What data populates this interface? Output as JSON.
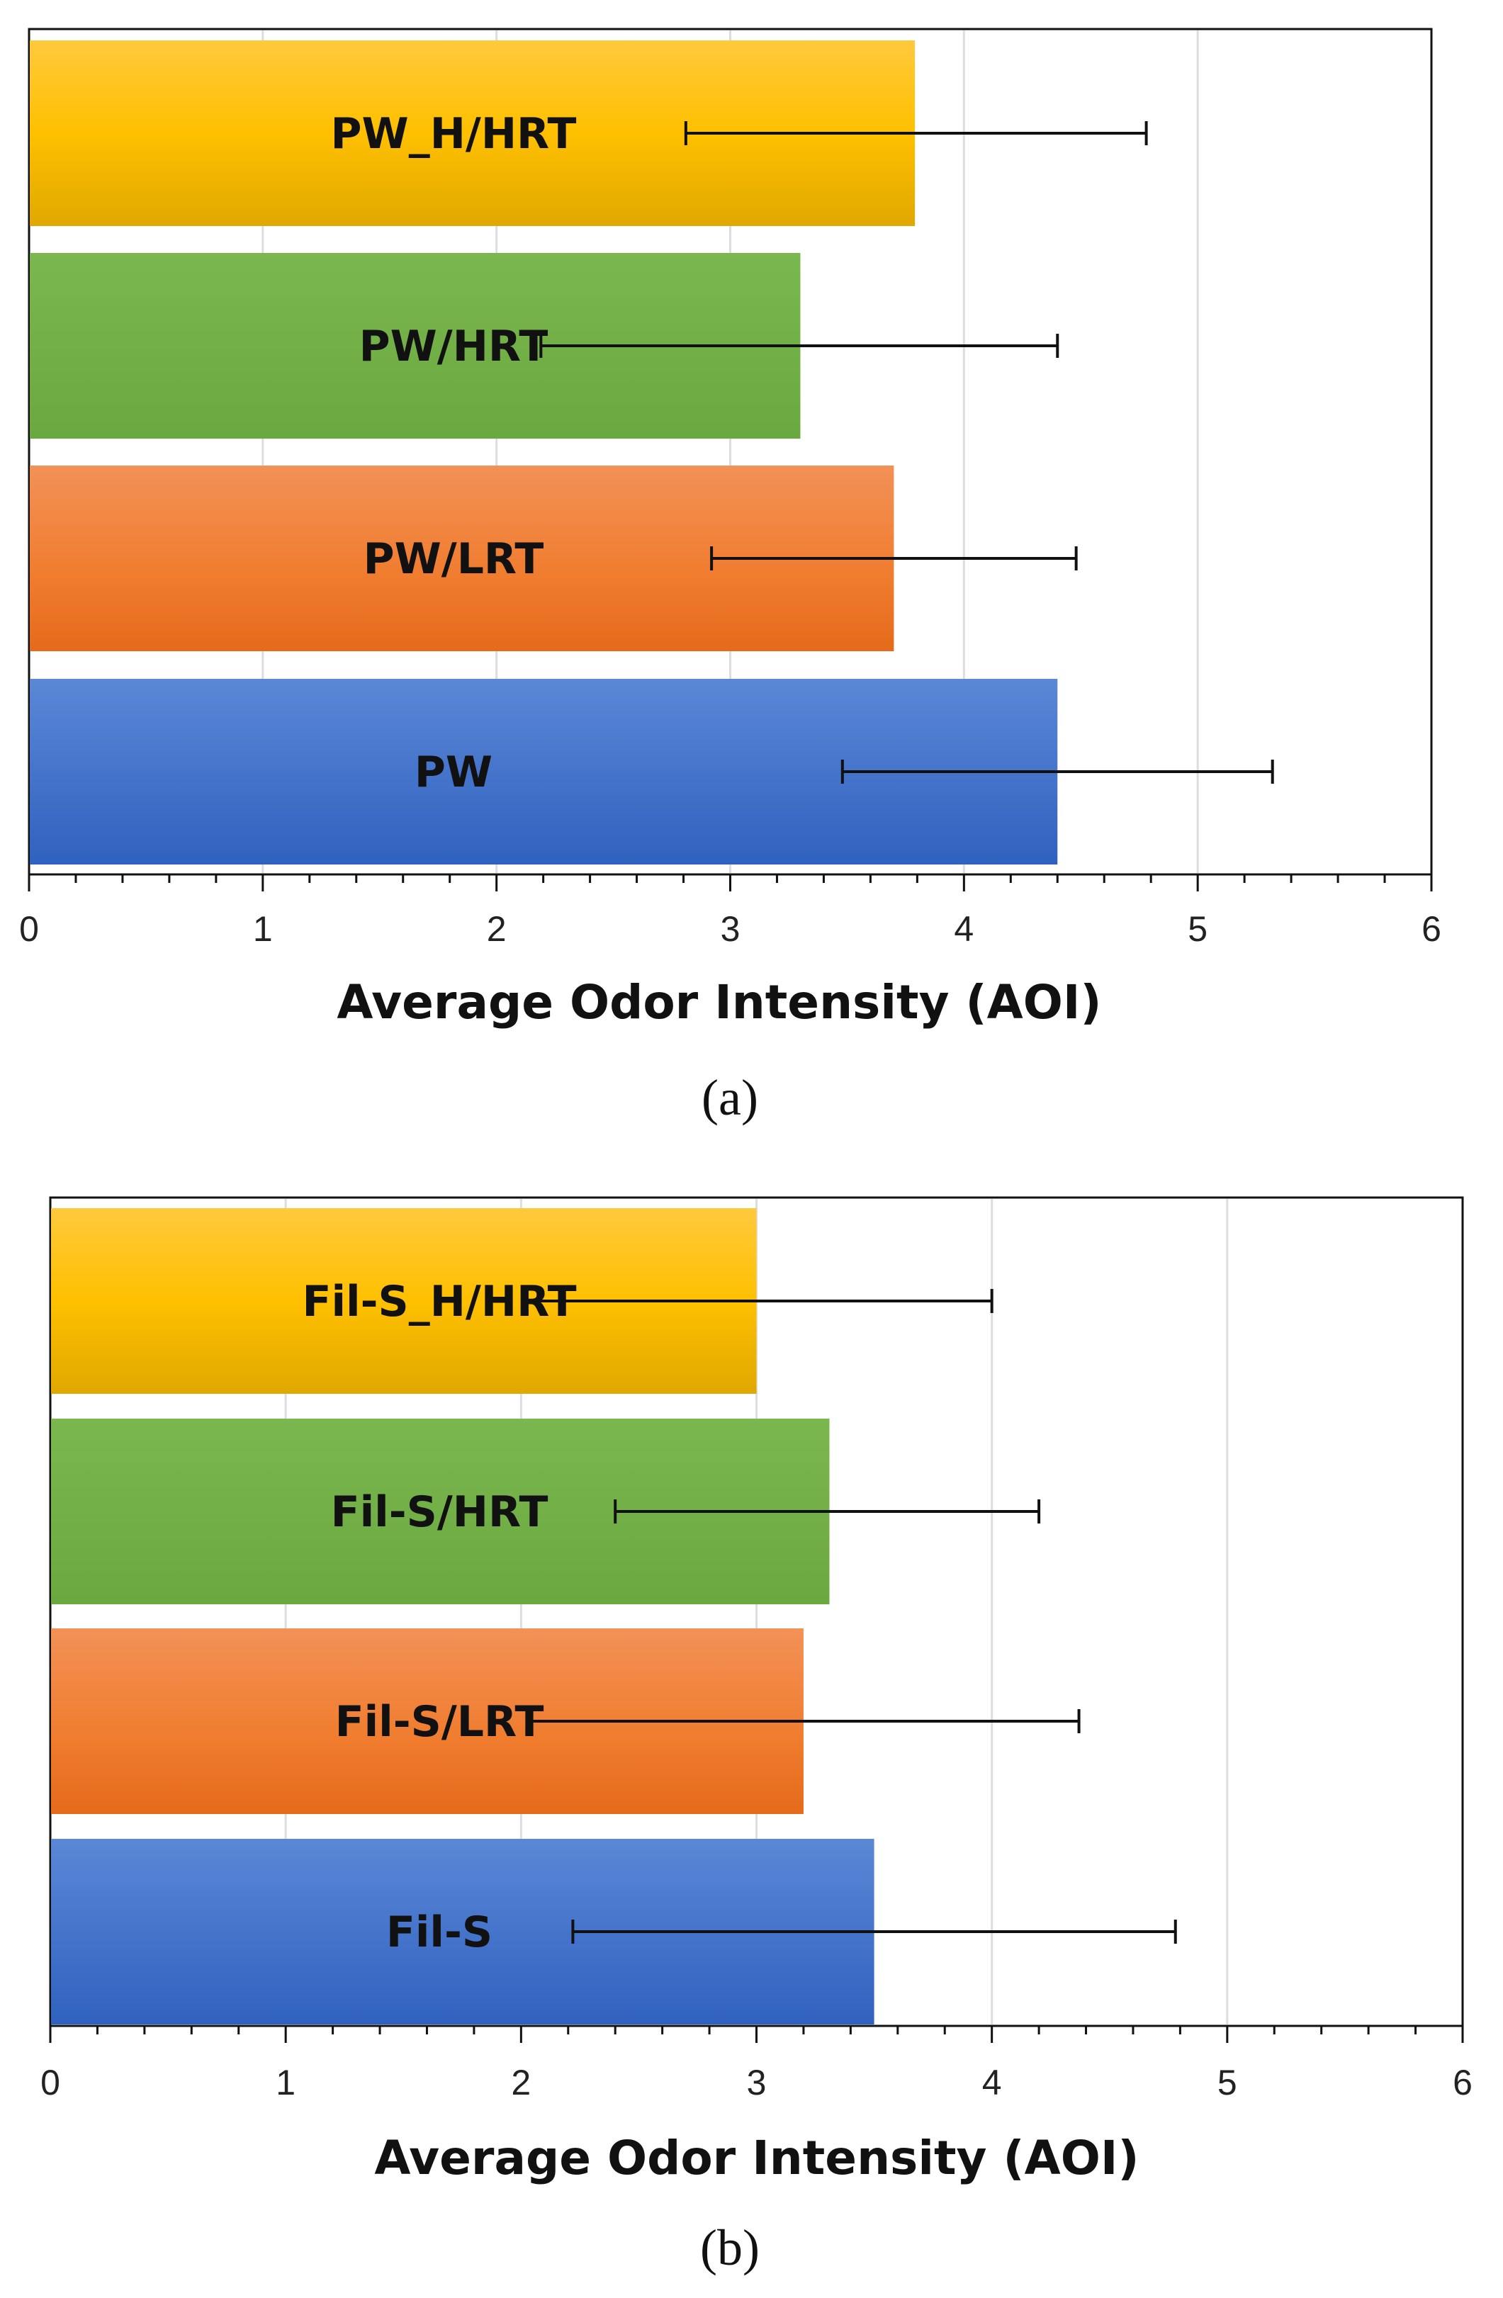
{
  "chart_data": [
    {
      "type": "bar",
      "orientation": "horizontal",
      "panel_label": "(a)",
      "categories": [
        "PW_H/HRT",
        "PW/HRT",
        "PW/LRT",
        "PW"
      ],
      "values": [
        3.79,
        3.3,
        3.7,
        4.4
      ],
      "error_bars": [
        {
          "low": 2.81,
          "high": 4.78
        },
        {
          "low": 2.19,
          "high": 4.4
        },
        {
          "low": 2.92,
          "high": 4.48
        },
        {
          "low": 3.48,
          "high": 5.32
        }
      ],
      "colors": [
        "#f5b800",
        "#70ad47",
        "#ed7d31",
        "#4472c4"
      ],
      "xlabel": "Average Odor Intensity (AOI)",
      "ylabel": "",
      "xlim": [
        0,
        6
      ],
      "xticks": [
        "0",
        "1",
        "2",
        "3",
        "4",
        "5",
        "6"
      ],
      "grid": "vertical"
    },
    {
      "type": "bar",
      "orientation": "horizontal",
      "panel_label": "(b)",
      "categories": [
        "Fil-S_H/HRT",
        "Fil-S/HRT",
        "Fil-S/LRT",
        "Fil-S"
      ],
      "values": [
        3.0,
        3.31,
        3.2,
        3.5
      ],
      "error_bars": [
        {
          "low": 2.02,
          "high": 4.0
        },
        {
          "low": 2.4,
          "high": 4.2
        },
        {
          "low": 2.04,
          "high": 4.37
        },
        {
          "low": 2.22,
          "high": 4.78
        }
      ],
      "colors": [
        "#f5b800",
        "#70ad47",
        "#ed7d31",
        "#4472c4"
      ],
      "xlabel": "Average Odor Intensity (AOI)",
      "ylabel": "",
      "xlim": [
        0,
        6
      ],
      "xticks": [
        "0",
        "1",
        "2",
        "3",
        "4",
        "5",
        "6"
      ],
      "grid": "vertical"
    }
  ]
}
